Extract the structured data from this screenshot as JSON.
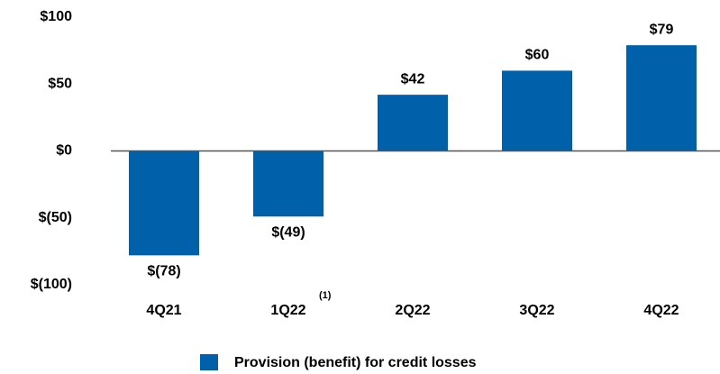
{
  "chart_data": {
    "type": "bar",
    "categories": [
      "4Q21",
      "1Q22",
      "2Q22",
      "3Q22",
      "4Q22"
    ],
    "annotations": [
      "(1)"
    ],
    "series": [
      {
        "name": "Provision (benefit) for credit losses",
        "color": "#0060a9",
        "values": [
          -78,
          -49,
          42,
          60,
          79
        ],
        "value_labels": [
          "$(78)",
          "$(49)",
          "$42",
          "$60",
          "$79"
        ]
      }
    ],
    "ylim": [
      -100,
      100
    ],
    "yticks": [
      {
        "value": 100,
        "label": "$100"
      },
      {
        "value": 50,
        "label": "$50"
      },
      {
        "value": 0,
        "label": "$0"
      },
      {
        "value": -50,
        "label": "$(50)"
      },
      {
        "value": -100,
        "label": "$(100)"
      }
    ],
    "grid": false
  }
}
